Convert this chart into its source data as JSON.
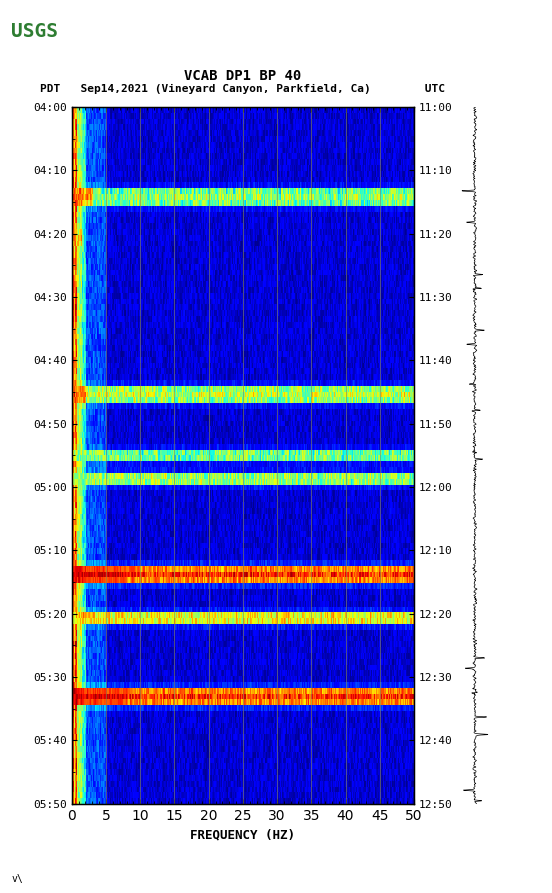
{
  "title_line1": "VCAB DP1 BP 40",
  "title_line2": "PDT   Sep14,2021 (Vineyard Canyon, Parkfield, Ca)        UTC",
  "xlabel": "FREQUENCY (HZ)",
  "freq_min": 0,
  "freq_max": 50,
  "freq_ticks": [
    0,
    5,
    10,
    15,
    20,
    25,
    30,
    35,
    40,
    45,
    50
  ],
  "time_left_labels": [
    "04:00",
    "04:10",
    "04:20",
    "04:30",
    "04:40",
    "04:50",
    "05:00",
    "05:10",
    "05:20",
    "05:30",
    "05:40",
    "05:50"
  ],
  "time_right_labels": [
    "11:00",
    "11:10",
    "11:20",
    "11:30",
    "11:40",
    "11:50",
    "12:00",
    "12:10",
    "12:20",
    "12:30",
    "12:40",
    "12:50"
  ],
  "n_time_rows": 120,
  "n_freq_cols": 500,
  "bg_color": "#0000aa",
  "colormap": "jet",
  "vline_freqs": [
    5,
    10,
    15,
    20,
    25,
    30,
    35,
    40,
    45
  ],
  "vline_color": "#888855",
  "vline_alpha": 0.6,
  "background": "#ffffff",
  "font_color": "#000000",
  "usgs_green": "#2e7d32"
}
